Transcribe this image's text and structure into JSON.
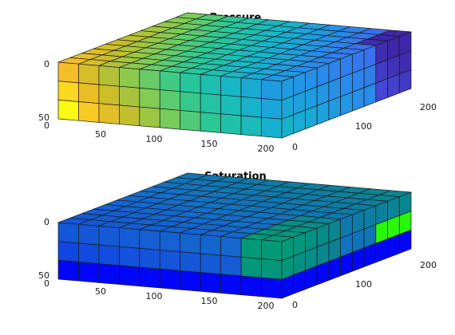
{
  "chart_data": [
    {
      "type": "heatmap",
      "title": "Pressure",
      "grid": "12x12x3",
      "x_ticks": [
        "50",
        "100",
        "150",
        "200"
      ],
      "y_ticks": [
        "0",
        "100",
        "200"
      ],
      "z_ticks": [
        "0",
        "50"
      ],
      "x_origin_label": "0",
      "xlim": [
        0,
        200
      ],
      "ylim": [
        0,
        220
      ],
      "zlim": [
        0,
        50
      ],
      "colormap": "parula",
      "gradient": "high (yellow) at x=0,y=0,bottom layer; low (blue) at x=200,y=200"
    },
    {
      "type": "heatmap",
      "title": "Saturation",
      "grid": "12x12x3",
      "x_ticks": [
        "50",
        "100",
        "150",
        "200"
      ],
      "y_ticks": [
        "0",
        "100",
        "200"
      ],
      "z_ticks": [
        "0",
        "50"
      ],
      "x_origin_label": "0",
      "xlim": [
        0,
        200
      ],
      "ylim": [
        0,
        220
      ],
      "zlim": [
        0,
        50
      ],
      "colormap": "jet",
      "gradient": "bottom layer saturated (blue), top layer low; injection front near x=200 corner (green)"
    }
  ]
}
